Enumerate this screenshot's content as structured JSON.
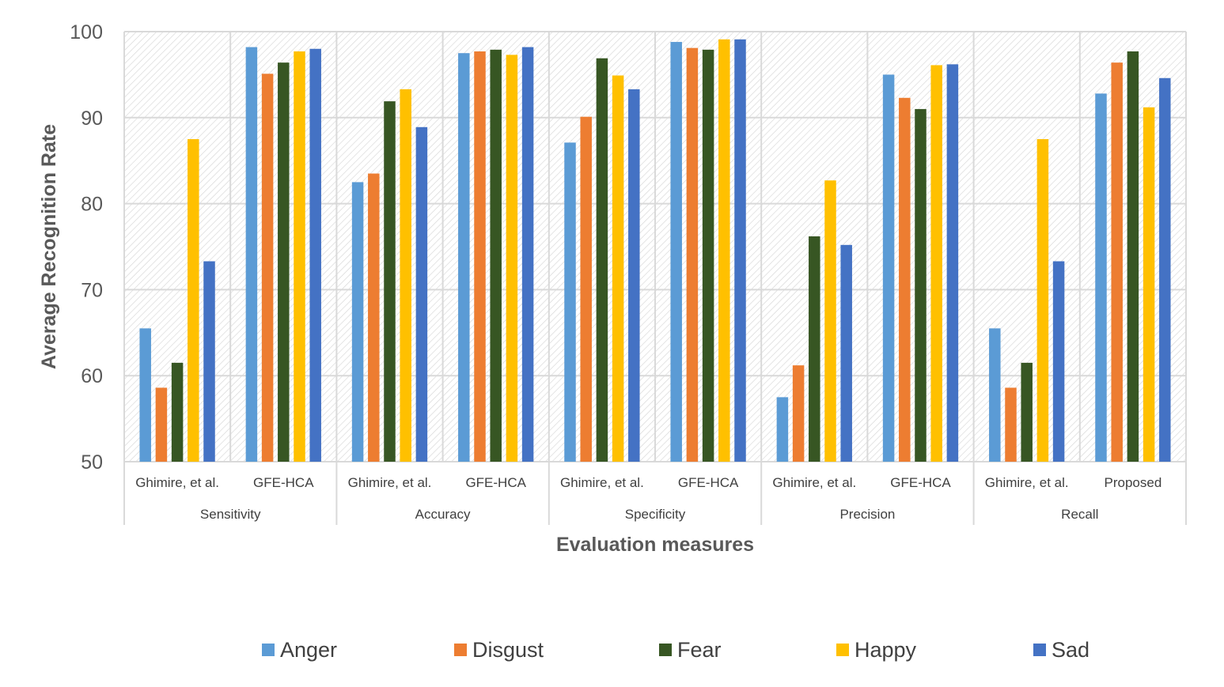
{
  "chart_data": {
    "type": "bar",
    "title": "",
    "xlabel": "Evaluation measures",
    "ylabel": "Average Recognition Rate",
    "ylim": [
      50,
      100
    ],
    "yticks": [
      50,
      60,
      70,
      80,
      90,
      100
    ],
    "grid": true,
    "legend_position": "bottom",
    "groups": [
      {
        "label": "Sensitivity",
        "subcategories": [
          "Ghimire, et al.",
          "GFE-HCA"
        ]
      },
      {
        "label": "Accuracy",
        "subcategories": [
          "Ghimire, et al.",
          "GFE-HCA"
        ]
      },
      {
        "label": "Specificity",
        "subcategories": [
          "Ghimire, et al.",
          "GFE-HCA"
        ]
      },
      {
        "label": "Precision",
        "subcategories": [
          "Ghimire, et al.",
          "GFE-HCA"
        ]
      },
      {
        "label": "Recall",
        "subcategories": [
          "Ghimire, et al.",
          "Proposed"
        ]
      }
    ],
    "categories": [
      "Ghimire, et al.",
      "GFE-HCA",
      "Ghimire, et al.",
      "GFE-HCA",
      "Ghimire, et al.",
      "GFE-HCA",
      "Ghimire, et al.",
      "GFE-HCA",
      "Ghimire, et al.",
      "Proposed"
    ],
    "series": [
      {
        "name": "Anger",
        "color": "#5b9bd5",
        "values": [
          65.5,
          98.2,
          82.5,
          97.5,
          87.1,
          98.8,
          57.5,
          95.0,
          65.5,
          92.8
        ]
      },
      {
        "name": "Disgust",
        "color": "#ed7d31",
        "values": [
          58.6,
          95.1,
          83.5,
          97.7,
          90.1,
          98.1,
          61.2,
          92.3,
          58.6,
          96.4
        ]
      },
      {
        "name": "Fear",
        "color": "#375623",
        "values": [
          61.5,
          96.4,
          91.9,
          97.9,
          96.9,
          97.9,
          76.2,
          91.0,
          61.5,
          97.7
        ]
      },
      {
        "name": "Happy",
        "color": "#ffc000",
        "values": [
          87.5,
          97.7,
          93.3,
          97.3,
          94.9,
          99.1,
          82.7,
          96.1,
          87.5,
          91.2
        ]
      },
      {
        "name": "Sad",
        "color": "#4472c4",
        "values": [
          73.3,
          98.0,
          88.9,
          98.2,
          93.3,
          99.1,
          75.2,
          96.2,
          73.3,
          94.6
        ]
      }
    ]
  }
}
